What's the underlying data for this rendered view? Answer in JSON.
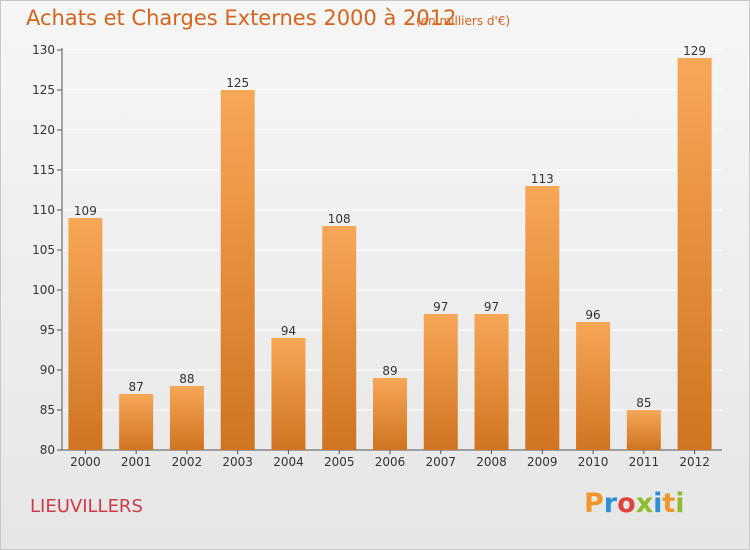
{
  "title": "Achats et Charges Externes 2000 à 2012",
  "subtitle": "(en milliers d'€)",
  "commune": "LIEUVILLERS",
  "logo": "Proxiti",
  "colors": {
    "bar_light": "#f7a757",
    "bar_dark": "#cf7420",
    "title": "#d8641c",
    "commune": "#cf3a4a",
    "grid": "#ffffff"
  },
  "chart_data": {
    "type": "bar",
    "title": "Achats et Charges Externes 2000 à 2012",
    "subtitle": "(en milliers d'€)",
    "categories": [
      "2000",
      "2001",
      "2002",
      "2003",
      "2004",
      "2005",
      "2006",
      "2007",
      "2008",
      "2009",
      "2010",
      "2011",
      "2012"
    ],
    "values": [
      109,
      87,
      88,
      125,
      94,
      108,
      89,
      97,
      97,
      113,
      96,
      85,
      129
    ],
    "ylim": [
      80,
      130
    ],
    "yticks": [
      80,
      85,
      90,
      95,
      100,
      105,
      110,
      115,
      120,
      125,
      130
    ],
    "grid": true,
    "xlabel": "",
    "ylabel": ""
  }
}
